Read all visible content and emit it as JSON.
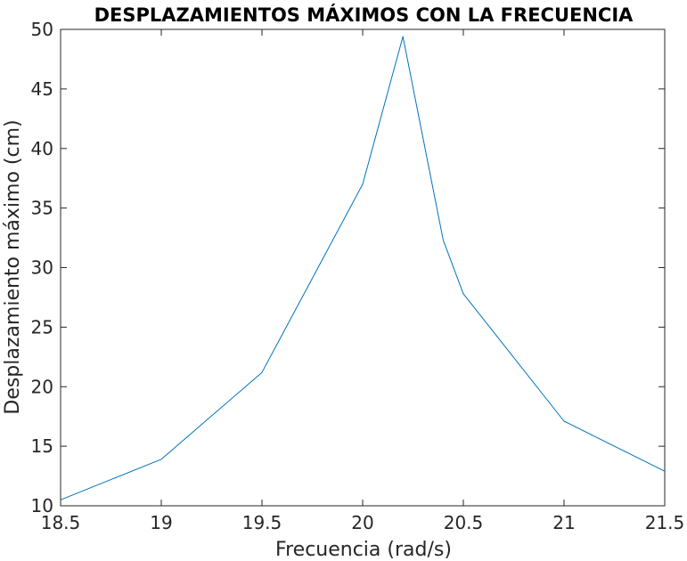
{
  "chart_data": {
    "type": "line",
    "title": "DESPLAZAMIENTOS MÁXIMOS CON LA FRECUENCIA",
    "xlabel": "Frecuencia (rad/s)",
    "ylabel": "Desplazamiento máximo (cm)",
    "xlim": [
      18.5,
      21.5
    ],
    "ylim": [
      10,
      50
    ],
    "xticks": [
      18.5,
      19,
      19.5,
      20,
      20.5,
      21,
      21.5
    ],
    "xtick_labels": [
      "18.5",
      "19",
      "19.5",
      "20",
      "20.5",
      "21",
      "21.5"
    ],
    "yticks": [
      10,
      15,
      20,
      25,
      30,
      35,
      40,
      45,
      50
    ],
    "ytick_labels": [
      "10",
      "15",
      "20",
      "25",
      "30",
      "35",
      "40",
      "45",
      "50"
    ],
    "grid": false,
    "series": [
      {
        "color": "#0072BD",
        "x": [
          18.5,
          19.0,
          19.5,
          20.0,
          20.2,
          20.4,
          20.5,
          21.0,
          21.5
        ],
        "y": [
          10.5,
          13.9,
          21.2,
          37.0,
          49.4,
          32.3,
          27.8,
          17.1,
          12.9
        ]
      }
    ]
  }
}
